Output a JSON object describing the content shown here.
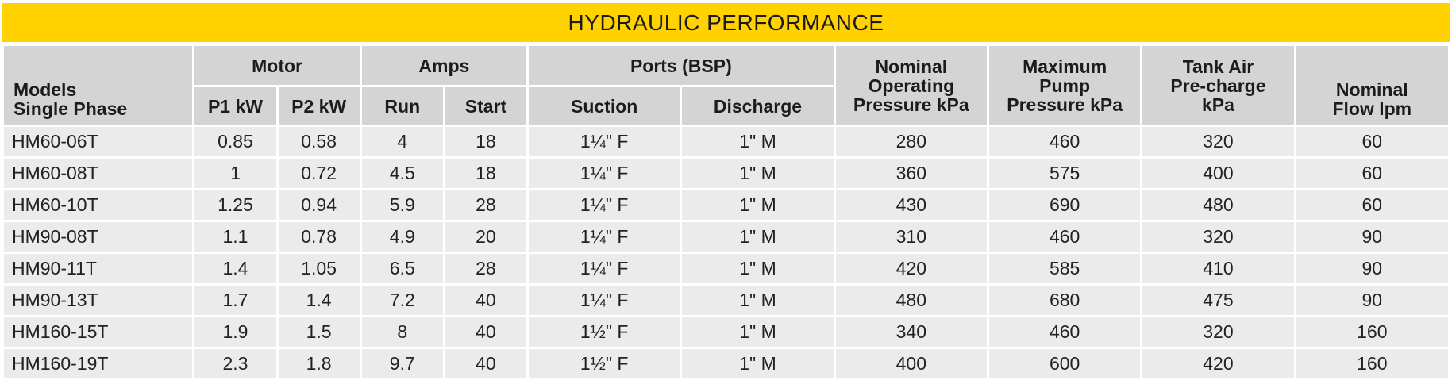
{
  "title": "HYDRAULIC PERFORMANCE",
  "colors": {
    "banner": "#ffd200",
    "header_bg": "#d4d4d4",
    "cell_bg": "#ebebeb"
  },
  "headers": {
    "models_line1": "Models",
    "models_line2": "Single Phase",
    "motor": "Motor",
    "p1": "P1 kW",
    "p2": "P2 kW",
    "amps": "Amps",
    "run": "Run",
    "start": "Start",
    "ports": "Ports (BSP)",
    "suction": "Suction",
    "discharge": "Discharge",
    "nominal_op_1": "Nominal",
    "nominal_op_2": "Operating",
    "nominal_op_3": "Pressure kPa",
    "max_pump_1": "Maximum",
    "max_pump_2": "Pump",
    "max_pump_3": "Pressure kPa",
    "tank_1": "Tank Air",
    "tank_2": "Pre-charge",
    "tank_3": "kPa",
    "flow_1": "Nominal",
    "flow_2": "Flow lpm"
  },
  "rows": [
    {
      "model": "HM60-06T",
      "p1": "0.85",
      "p2": "0.58",
      "run": "4",
      "start": "18",
      "suction": "1¼\" F",
      "discharge": "1\" M",
      "op": "280",
      "max": "460",
      "tank": "320",
      "flow": "60"
    },
    {
      "model": "HM60-08T",
      "p1": "1",
      "p2": "0.72",
      "run": "4.5",
      "start": "18",
      "suction": "1¼\" F",
      "discharge": "1\" M",
      "op": "360",
      "max": "575",
      "tank": "400",
      "flow": "60"
    },
    {
      "model": "HM60-10T",
      "p1": "1.25",
      "p2": "0.94",
      "run": "5.9",
      "start": "28",
      "suction": "1¼\" F",
      "discharge": "1\" M",
      "op": "430",
      "max": "690",
      "tank": "480",
      "flow": "60"
    },
    {
      "model": "HM90-08T",
      "p1": "1.1",
      "p2": "0.78",
      "run": "4.9",
      "start": "20",
      "suction": "1¼\" F",
      "discharge": "1\" M",
      "op": "310",
      "max": "460",
      "tank": "320",
      "flow": "90"
    },
    {
      "model": "HM90-11T",
      "p1": "1.4",
      "p2": "1.05",
      "run": "6.5",
      "start": "28",
      "suction": "1¼\" F",
      "discharge": "1\" M",
      "op": "420",
      "max": "585",
      "tank": "410",
      "flow": "90"
    },
    {
      "model": "HM90-13T",
      "p1": "1.7",
      "p2": "1.4",
      "run": "7.2",
      "start": "40",
      "suction": "1¼\" F",
      "discharge": "1\" M",
      "op": "480",
      "max": "680",
      "tank": "475",
      "flow": "90"
    },
    {
      "model": "HM160-15T",
      "p1": "1.9",
      "p2": "1.5",
      "run": "8",
      "start": "40",
      "suction": "1½\" F",
      "discharge": "1\" M",
      "op": "340",
      "max": "460",
      "tank": "320",
      "flow": "160"
    },
    {
      "model": "HM160-19T",
      "p1": "2.3",
      "p2": "1.8",
      "run": "9.7",
      "start": "40",
      "suction": "1½\" F",
      "discharge": "1\" M",
      "op": "400",
      "max": "600",
      "tank": "420",
      "flow": "160"
    }
  ]
}
